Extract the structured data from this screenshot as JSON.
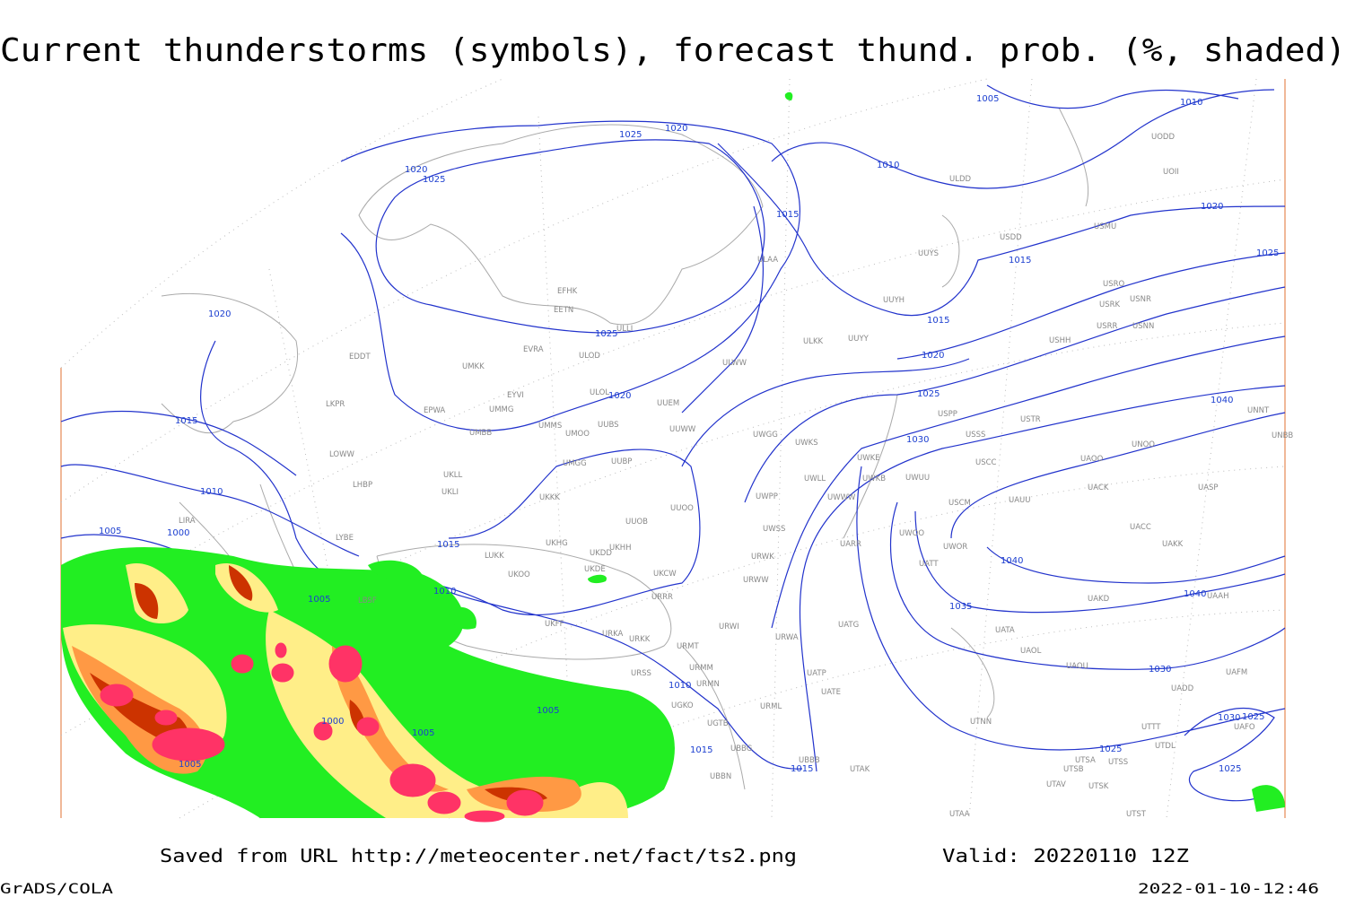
{
  "header": {
    "title": "Current thunderstorms (symbols), forecast thund. prob. (%, shaded)"
  },
  "isobar_labels": [
    1005,
    1010,
    1025,
    1020,
    1010,
    1020,
    1025,
    1015,
    1020,
    1015,
    1025,
    1015,
    1025,
    1020,
    1020,
    1020,
    1025,
    1040,
    1015,
    1030,
    1010,
    1005,
    1000,
    1015,
    1040,
    1010,
    1005,
    1040,
    1035,
    1030,
    1010,
    1005,
    1000,
    1005,
    1030,
    1025,
    1025,
    1015,
    1005,
    1015,
    1025
  ],
  "stations": [
    "UODD",
    "ULDD",
    "UOII",
    "USMU",
    "USDD",
    "UUYS",
    "ULAA",
    "USRO",
    "USRK",
    "USNR",
    "UUYH",
    "EFHK",
    "EETN",
    "ULLI",
    "USRR",
    "USNN",
    "ULKK",
    "UUYY",
    "USHH",
    "EVRA",
    "ULOD",
    "EDDT",
    "UMKK",
    "ULWW",
    "ULOL",
    "EYVI",
    "UUEM",
    "LKPR",
    "EPWA",
    "UMMG",
    "USPP",
    "UNNT",
    "USTR",
    "UMMS",
    "UUBS",
    "UMOO",
    "UUWW",
    "UWGG",
    "UMBB",
    "UWKS",
    "USSS",
    "UNOO",
    "UNBB",
    "LOWW",
    "UWKE",
    "UAOO",
    "USCC",
    "UMGG",
    "UUBP",
    "UKLL",
    "UWLL",
    "UWKB",
    "UWUU",
    "UACK",
    "UASP",
    "LHBP",
    "UKLI",
    "UKKK",
    "UWPP",
    "UWWW",
    "USCM",
    "UAUU",
    "UUOO",
    "LIRA",
    "UUOB",
    "LYBE",
    "UWSS",
    "UWOO",
    "UACC",
    "UKHG",
    "UKDD",
    "UKHH",
    "UARR",
    "UWOR",
    "UAKK",
    "LUKK",
    "URWK",
    "UATT",
    "UKOO",
    "UKDE",
    "UKCW",
    "URWW",
    "URRR",
    "UAKD",
    "UAAH",
    "UKFF",
    "UATG",
    "URWI",
    "UATA",
    "URKA",
    "URKK",
    "URWA",
    "URMT",
    "UAOL",
    "UAOU",
    "UAFM",
    "URSS",
    "URMM",
    "UATP",
    "URMN",
    "UATE",
    "UADD",
    "UGKO",
    "URML",
    "UGTB",
    "UTNN",
    "UTTT",
    "UAFO",
    "UTDL",
    "UBBG",
    "UTSA",
    "UTSS",
    "UBBB",
    "UBBN",
    "UTAK",
    "UTSB",
    "UTAV",
    "UTSK",
    "UTAA",
    "UTST",
    "LBSF"
  ],
  "footer": {
    "saved": "Saved from URL http://meteocenter.net/fact/ts2.png",
    "valid": "Valid: 20220110 12Z",
    "credit": "GrADS/COLA",
    "timestamp": "2022-01-10-12:46"
  }
}
